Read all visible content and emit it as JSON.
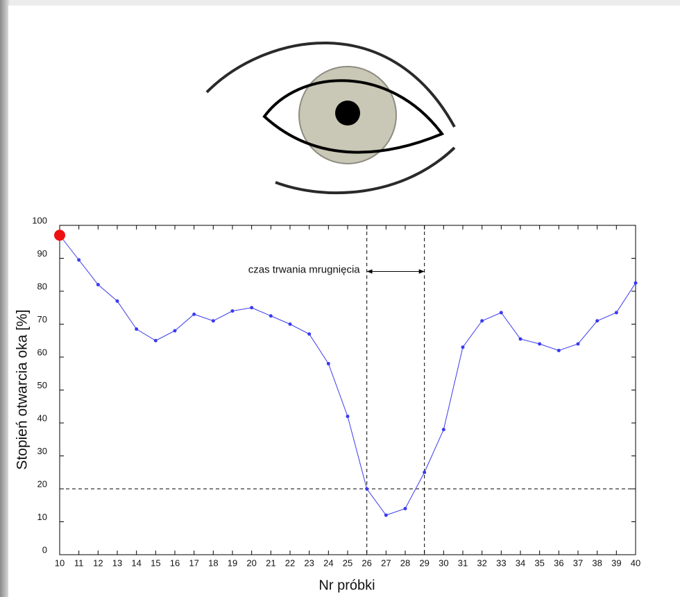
{
  "chart_data": {
    "type": "line",
    "x_label": "Nr próbki",
    "y_label": "Stopień otwarcia oka [%]",
    "x": [
      10,
      11,
      12,
      13,
      14,
      15,
      16,
      17,
      18,
      19,
      20,
      21,
      22,
      23,
      24,
      25,
      26,
      27,
      28,
      29,
      30,
      31,
      32,
      33,
      34,
      35,
      36,
      37,
      38,
      39,
      40
    ],
    "values": [
      97,
      89.5,
      82,
      77,
      68.5,
      65,
      68,
      73,
      71,
      74,
      75,
      72.5,
      70,
      67,
      58,
      42,
      20,
      12,
      14,
      25,
      38,
      63,
      71,
      73.5,
      65.5,
      64,
      62,
      64,
      71,
      73.5,
      82.5
    ],
    "color": "#3a3aee",
    "highlight": {
      "index": 0,
      "color": "#ee1111"
    },
    "xlim": [
      10,
      40
    ],
    "xticks": [
      10,
      11,
      12,
      13,
      14,
      15,
      16,
      17,
      18,
      19,
      20,
      21,
      22,
      23,
      24,
      25,
      26,
      27,
      28,
      29,
      30,
      31,
      32,
      33,
      34,
      35,
      36,
      37,
      38,
      39,
      40
    ],
    "ylim": [
      0,
      100
    ],
    "yticks": [
      0,
      10,
      20,
      30,
      40,
      50,
      60,
      70,
      80,
      90,
      100
    ],
    "vlines": [
      26,
      29
    ],
    "hline": 20,
    "annotation": {
      "text": "czas trwania mrugnięcia",
      "x_start": 26,
      "x_end": 29,
      "y": 86
    }
  }
}
